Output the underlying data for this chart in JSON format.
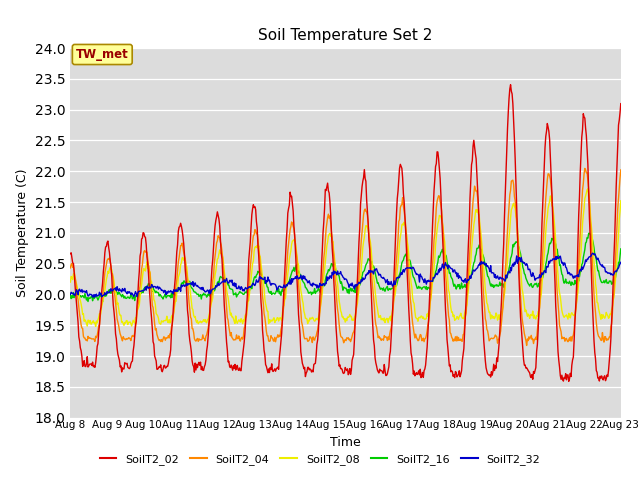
{
  "title": "Soil Temperature Set 2",
  "xlabel": "Time",
  "ylabel": "Soil Temperature (C)",
  "ylim": [
    18.0,
    24.0
  ],
  "yticks": [
    18.0,
    18.5,
    19.0,
    19.5,
    20.0,
    20.5,
    21.0,
    21.5,
    22.0,
    22.5,
    23.0,
    23.5,
    24.0
  ],
  "bg_color": "#dcdcdc",
  "fig_bg": "#ffffff",
  "annotation_text": "TW_met",
  "annotation_bg": "#ffff99",
  "annotation_border": "#aa8800",
  "annotation_text_color": "#990000",
  "series": {
    "SoilT2_02": {
      "color": "#dd0000",
      "lw": 1.0
    },
    "SoilT2_04": {
      "color": "#ff8800",
      "lw": 1.0
    },
    "SoilT2_08": {
      "color": "#eeee00",
      "lw": 1.0
    },
    "SoilT2_16": {
      "color": "#00cc00",
      "lw": 1.0
    },
    "SoilT2_32": {
      "color": "#0000cc",
      "lw": 1.0
    }
  },
  "n_days": 15,
  "pts_per_day": 48,
  "xtick_labels": [
    "Aug 8",
    "Aug 9",
    "Aug 10",
    "Aug 11",
    "Aug 12",
    "Aug 13",
    "Aug 14",
    "Aug 15",
    "Aug 16",
    "Aug 17",
    "Aug 18",
    "Aug 19",
    "Aug 20",
    "Aug 21",
    "Aug 22",
    "Aug 23"
  ],
  "xtick_positions": [
    0,
    1,
    2,
    3,
    4,
    5,
    6,
    7,
    8,
    9,
    10,
    11,
    12,
    13,
    14,
    15
  ]
}
